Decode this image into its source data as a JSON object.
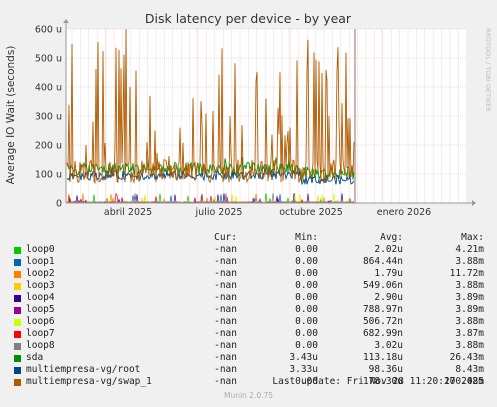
{
  "chart_data": {
    "type": "line",
    "title": "Disk latency per device - by year",
    "ylabel": "Average IO Wait (seconds)",
    "side_label": "RRDTOOL / TOBI OETIKER",
    "y_ticks": [
      "0",
      "100 u",
      "200 u",
      "300 u",
      "400 u",
      "500 u",
      "600 u"
    ],
    "ylim": [
      0,
      600
    ],
    "y_unit": "u (microseconds)",
    "x_ticks": [
      "abril 2025",
      "julio 2025",
      "octubre 2025",
      "enero 2026"
    ],
    "grid": true,
    "colors": {
      "background": "#f0f0f0",
      "plot_background": "#ffffff",
      "grid": "#e8b4b4",
      "axis": "#999999",
      "now_marker": "#b08080"
    },
    "series": [
      {
        "name": "loop0",
        "color": "#00cc00",
        "cur": "-nan",
        "min": "0.00",
        "avg": "2.02u",
        "max": "4.21m"
      },
      {
        "name": "loop1",
        "color": "#0066b3",
        "cur": "-nan",
        "min": "0.00",
        "avg": "864.44n",
        "max": "3.88m"
      },
      {
        "name": "loop2",
        "color": "#ff8000",
        "cur": "-nan",
        "min": "0.00",
        "avg": "1.79u",
        "max": "11.72m"
      },
      {
        "name": "loop3",
        "color": "#ffcc00",
        "cur": "-nan",
        "min": "0.00",
        "avg": "549.06n",
        "max": "3.88m"
      },
      {
        "name": "loop4",
        "color": "#330099",
        "cur": "-nan",
        "min": "0.00",
        "avg": "2.90u",
        "max": "3.89m"
      },
      {
        "name": "loop5",
        "color": "#990099",
        "cur": "-nan",
        "min": "0.00",
        "avg": "788.97n",
        "max": "3.89m"
      },
      {
        "name": "loop6",
        "color": "#ccff00",
        "cur": "-nan",
        "min": "0.00",
        "avg": "506.72n",
        "max": "3.88m"
      },
      {
        "name": "loop7",
        "color": "#ff0000",
        "cur": "-nan",
        "min": "0.00",
        "avg": "682.99n",
        "max": "3.87m"
      },
      {
        "name": "loop8",
        "color": "#808080",
        "cur": "-nan",
        "min": "0.00",
        "avg": "3.02u",
        "max": "3.88m"
      },
      {
        "name": "sda",
        "color": "#008f00",
        "cur": "-nan",
        "min": "3.43u",
        "avg": "113.18u",
        "max": "26.43m"
      },
      {
        "name": "multiempresa-vg/root",
        "color": "#00487d",
        "cur": "-nan",
        "min": "3.33u",
        "avg": "98.36u",
        "max": "8.43m"
      },
      {
        "name": "multiempresa-vg/swap_1",
        "color": "#b35a00",
        "cur": "-nan",
        "min": "0.00",
        "avg": "178.30u",
        "max": "100.48m"
      }
    ]
  },
  "legend": {
    "header": {
      "cur": "Cur:",
      "min": "Min:",
      "avg": "Avg:",
      "max": "Max:"
    }
  },
  "footer": {
    "last_update": "Last update: Fri Nov 28 11:20:27 2025",
    "munin": "Munin 2.0.75"
  }
}
